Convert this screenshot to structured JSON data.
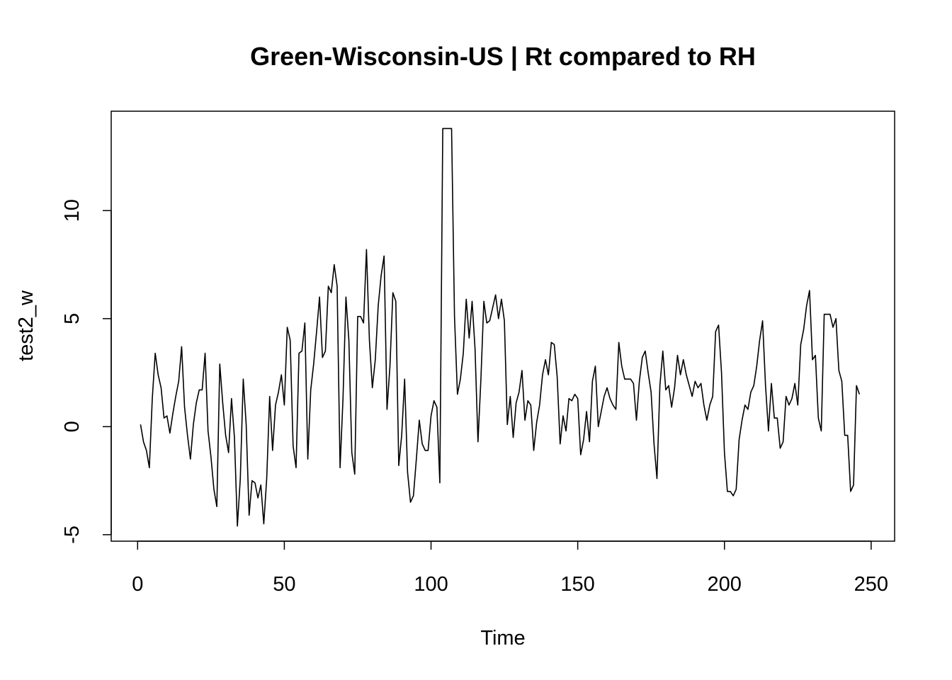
{
  "chart_data": {
    "type": "line",
    "title": "Green-Wisconsin-US | Rt compared to RH",
    "xlabel": "Time",
    "ylabel": "test2_w",
    "xlim": [
      -9,
      258
    ],
    "ylim": [
      -5.3,
      14.6
    ],
    "xticks": [
      0,
      50,
      100,
      150,
      200,
      250
    ],
    "yticks": [
      -5,
      0,
      5,
      10
    ],
    "grid": false,
    "legend": "none",
    "series": [
      {
        "x_start": 1,
        "values": [
          0.1,
          -0.7,
          -1.1,
          -1.9,
          1.3,
          3.4,
          2.4,
          1.8,
          0.4,
          0.5,
          -0.3,
          0.6,
          1.4,
          2.1,
          3.7,
          0.9,
          -0.4,
          -1.5,
          0.1,
          1.1,
          1.7,
          1.7,
          3.4,
          -0.2,
          -1.4,
          -2.9,
          -3.7,
          2.9,
          1.1,
          -0.4,
          -1.2,
          1.3,
          -0.5,
          -4.6,
          -2.4,
          2.2,
          0.1,
          -4.1,
          -2.5,
          -2.6,
          -3.3,
          -2.7,
          -4.5,
          -2.4,
          1.4,
          -1.1,
          1.0,
          1.6,
          2.4,
          1.0,
          4.6,
          4.0,
          -0.9,
          -1.9,
          3.4,
          3.5,
          4.8,
          -1.5,
          1.7,
          2.9,
          4.4,
          6.0,
          3.2,
          3.5,
          6.5,
          6.2,
          7.5,
          6.5,
          -1.9,
          1.3,
          6.0,
          4.0,
          -1.2,
          -2.2,
          5.1,
          5.1,
          4.8,
          8.2,
          4.0,
          1.8,
          3.1,
          5.6,
          7.0,
          7.9,
          0.8,
          2.8,
          6.2,
          5.8,
          -1.8,
          -0.4,
          2.2,
          -2.1,
          -3.5,
          -3.2,
          -1.5,
          0.3,
          -0.8,
          -1.1,
          -1.1,
          0.5,
          1.2,
          0.9,
          -2.6,
          13.8,
          13.8,
          13.8,
          13.8,
          5.1,
          1.5,
          2.2,
          3.4,
          5.9,
          4.1,
          5.8,
          3.6,
          -0.7,
          2.2,
          5.8,
          4.8,
          4.9,
          5.5,
          6.1,
          5.0,
          5.9,
          4.9,
          0.1,
          1.4,
          -0.5,
          1.1,
          1.6,
          2.6,
          0.3,
          1.2,
          1.0,
          -1.1,
          0.2,
          1.0,
          2.4,
          3.1,
          2.4,
          3.9,
          3.8,
          2.3,
          -0.8,
          0.5,
          -0.2,
          1.3,
          1.2,
          1.5,
          1.3,
          -1.3,
          -0.6,
          0.7,
          -0.7,
          2.1,
          2.8,
          0.0,
          0.7,
          1.4,
          1.8,
          1.3,
          1.0,
          0.8,
          3.9,
          2.8,
          2.2,
          2.2,
          2.2,
          2.0,
          0.3,
          2.1,
          3.2,
          3.5,
          2.5,
          1.6,
          -0.8,
          -2.4,
          1.9,
          3.5,
          1.7,
          1.9,
          0.9,
          1.8,
          3.3,
          2.4,
          3.1,
          2.4,
          1.9,
          1.4,
          2.1,
          1.8,
          2.0,
          1.0,
          0.3,
          1.0,
          1.4,
          4.4,
          4.7,
          2.5,
          -1.2,
          -3.0,
          -3.0,
          -3.2,
          -2.9,
          -0.6,
          0.3,
          1.0,
          0.8,
          1.6,
          1.9,
          2.8,
          4.0,
          4.9,
          1.9,
          -0.2,
          2.0,
          0.4,
          0.4,
          -1.0,
          -0.7,
          1.4,
          1.0,
          1.3,
          2.0,
          1.0,
          3.8,
          4.5,
          5.6,
          6.3,
          3.1,
          3.3,
          0.4,
          -0.2,
          5.2,
          5.2,
          5.2,
          4.6,
          5.0,
          2.6,
          2.1,
          -0.4,
          -0.4,
          -3.0,
          -2.7,
          1.9,
          1.5
        ]
      }
    ]
  }
}
